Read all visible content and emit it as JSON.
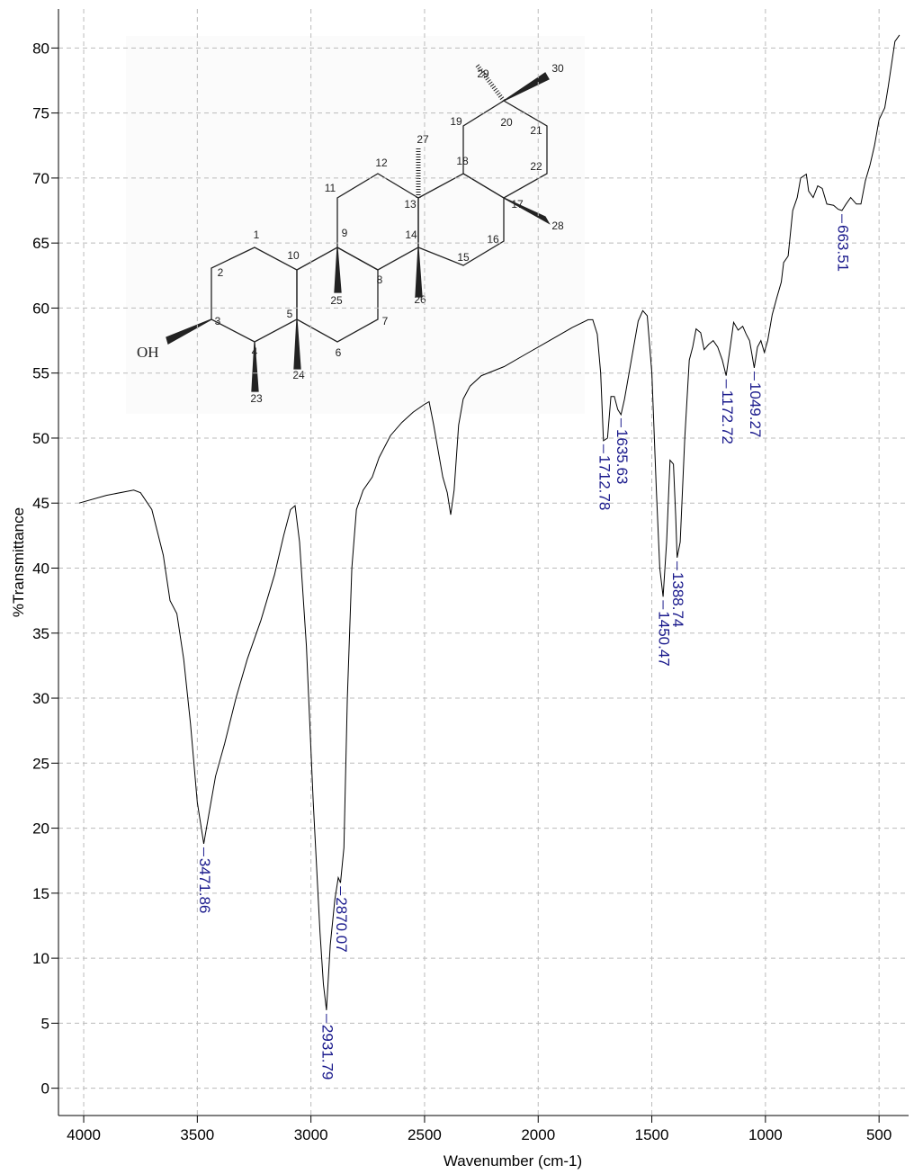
{
  "chart_data": {
    "type": "line",
    "x_label": "Wavenumber (cm-1)",
    "y_label": "%Transmittance",
    "xlim": [
      4111,
      370
    ],
    "ylim": [
      -2.1,
      83
    ],
    "xticks": [
      4000,
      3500,
      3000,
      2500,
      2000,
      1500,
      1000,
      500
    ],
    "yticks": [
      0,
      5,
      10,
      15,
      20,
      25,
      30,
      35,
      40,
      45,
      50,
      55,
      60,
      65,
      70,
      75,
      80
    ],
    "grid": true,
    "series": [
      {
        "color": "#000000",
        "x": [
          4020,
          3900,
          3780,
          3750,
          3700,
          3650,
          3620,
          3590,
          3560,
          3530,
          3500,
          3471.86,
          3450,
          3420,
          3380,
          3330,
          3280,
          3220,
          3160,
          3120,
          3090,
          3070,
          3050,
          3020,
          2990,
          2960,
          2945,
          2931.79,
          2915,
          2895,
          2880,
          2870.07,
          2855,
          2840,
          2820,
          2800,
          2770,
          2730,
          2700,
          2650,
          2600,
          2550,
          2500,
          2480,
          2460,
          2420,
          2400,
          2385,
          2370,
          2350,
          2330,
          2300,
          2250,
          2150,
          2050,
          1950,
          1850,
          1780,
          1760,
          1740,
          1725,
          1712.78,
          1695,
          1680,
          1665,
          1650,
          1635.63,
          1620,
          1590,
          1560,
          1540,
          1520,
          1500,
          1480,
          1465,
          1450.47,
          1435,
          1420,
          1405,
          1395,
          1388.74,
          1375,
          1355,
          1335,
          1320,
          1305,
          1285,
          1270,
          1250,
          1230,
          1210,
          1190,
          1172.72,
          1155,
          1140,
          1120,
          1100,
          1085,
          1070,
          1060,
          1049.27,
          1035,
          1020,
          1005,
          990,
          970,
          950,
          930,
          920,
          900,
          880,
          860,
          845,
          820,
          810,
          790,
          770,
          750,
          730,
          700,
          680,
          663.51,
          645,
          625,
          600,
          580,
          560,
          540,
          520,
          500,
          475,
          460,
          430,
          410
        ],
        "values": [
          45,
          45.6,
          46,
          45.8,
          44.5,
          41,
          37.5,
          36.5,
          33,
          28,
          22,
          18.8,
          21,
          24,
          26.5,
          30,
          33,
          36,
          39.5,
          42.5,
          44.5,
          44.8,
          42,
          34,
          22,
          12,
          8,
          6,
          11,
          14.5,
          16.2,
          15.8,
          18.5,
          30,
          40,
          44.5,
          46,
          47,
          48.5,
          50.2,
          51.2,
          52,
          52.6,
          52.8,
          51,
          47,
          45.8,
          44.1,
          46,
          51,
          53,
          54,
          54.8,
          55.5,
          56.5,
          57.5,
          58.5,
          59.1,
          59.1,
          58,
          55,
          49.8,
          50,
          53.2,
          53.2,
          52.2,
          51.8,
          53,
          56,
          59,
          59.8,
          59.4,
          55,
          46,
          40,
          37.8,
          42,
          48.3,
          48,
          44,
          40.8,
          42,
          50,
          56,
          57,
          58.4,
          58.1,
          56.8,
          57.2,
          57.5,
          57,
          56,
          54.8,
          57,
          58.9,
          58.3,
          58.6,
          58,
          57.5,
          56.5,
          55.4,
          57,
          57.5,
          56.6,
          57.5,
          59.5,
          60.8,
          62,
          63.5,
          64,
          67.5,
          68.5,
          70,
          70.3,
          69,
          68.5,
          69.4,
          69.2,
          68,
          67.9,
          67.6,
          67.5,
          68,
          68.5,
          68,
          68,
          69.8,
          71,
          72.5,
          74.5,
          75.4,
          77,
          80.5,
          81
        ]
      }
    ],
    "peaks": {
      "color": "#1a1a8c",
      "x": [
        3471.86,
        2931.79,
        2870.07,
        1712.78,
        1635.63,
        1450.47,
        1388.74,
        1172.72,
        1049.27,
        663.51
      ],
      "values": [
        18.8,
        6,
        15.8,
        49.8,
        51.8,
        37.8,
        40.8,
        54.8,
        55.4,
        67.5
      ]
    }
  },
  "structure": {
    "atom_labels": [
      "1",
      "2",
      "3",
      "4",
      "5",
      "6",
      "7",
      "8",
      "9",
      "10",
      "11",
      "12",
      "13",
      "14",
      "15",
      "16",
      "17",
      "18",
      "19",
      "20",
      "21",
      "22",
      "23",
      "24",
      "25",
      "26",
      "27",
      "28",
      "29",
      "30"
    ],
    "substituent": "OH"
  }
}
